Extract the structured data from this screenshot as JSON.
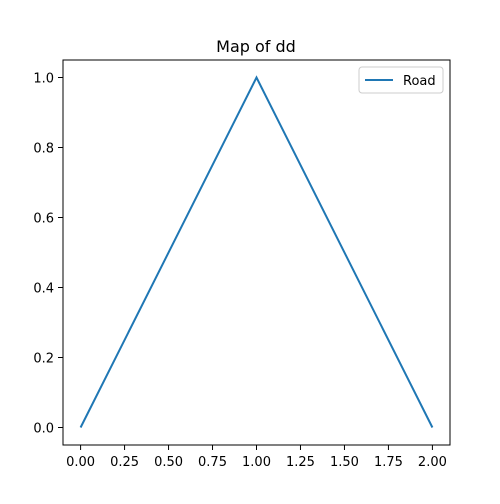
{
  "chart_data": {
    "type": "line",
    "title": "Map of dd",
    "xlabel": "",
    "ylabel": "",
    "xlim": [
      -0.1,
      2.1
    ],
    "ylim": [
      -0.05,
      1.05
    ],
    "x_ticks": [
      0.0,
      0.25,
      0.5,
      0.75,
      1.0,
      1.25,
      1.5,
      1.75,
      2.0
    ],
    "x_tick_labels": [
      "0.00",
      "0.25",
      "0.50",
      "0.75",
      "1.00",
      "1.25",
      "1.50",
      "1.75",
      "2.00"
    ],
    "y_ticks": [
      0.0,
      0.2,
      0.4,
      0.6,
      0.8,
      1.0
    ],
    "y_tick_labels": [
      "0.0",
      "0.2",
      "0.4",
      "0.6",
      "0.8",
      "1.0"
    ],
    "grid": false,
    "legend": "top-right",
    "series": [
      {
        "name": "Road",
        "color": "#1f77b4",
        "x": [
          0,
          1,
          2
        ],
        "y": [
          0,
          1,
          0
        ]
      }
    ]
  }
}
